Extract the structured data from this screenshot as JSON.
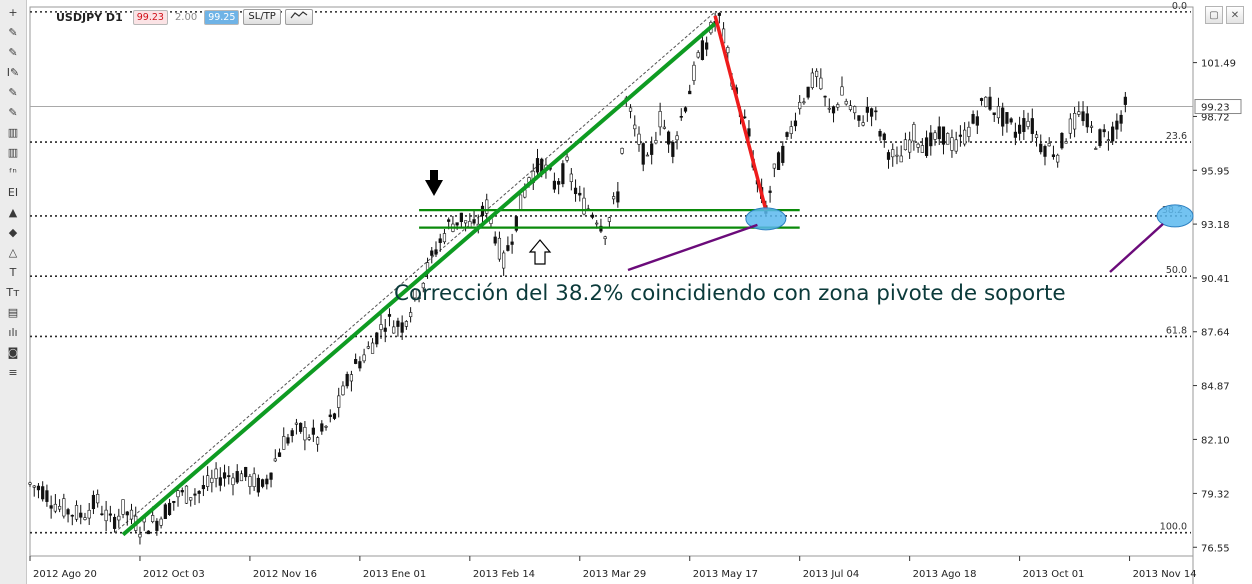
{
  "chart_data": {
    "type": "candlestick",
    "symbol_label": "USDJPY D1",
    "bid": "99.23",
    "spread": "2.00",
    "ask": "99.25",
    "sltp_label": "SL/TP",
    "current_price": "99.23",
    "ylim": [
      76.1,
      104.3
    ],
    "y_ticks": [
      "101.49",
      "98.72",
      "95.95",
      "93.18",
      "90.41",
      "87.64",
      "84.87",
      "82.10",
      "79.32",
      "76.55"
    ],
    "x_ticks": [
      "2012 Ago 20",
      "2012 Oct 03",
      "2012 Nov 16",
      "2013 Ene 01",
      "2013 Feb 14",
      "2013 Mar 29",
      "2013 May 17",
      "2013 Jul 04",
      "2013 Ago 18",
      "2013 Oct 01",
      "2013 Nov 14"
    ],
    "fibonacci_levels": [
      {
        "label": "0.0",
        "price": 104.1
      },
      {
        "label": "23.6",
        "price": 97.4
      },
      {
        "label": "38.2",
        "price": 93.6
      },
      {
        "label": "50.0",
        "price": 90.5
      },
      {
        "label": "61.8",
        "price": 87.4
      },
      {
        "label": "100.0",
        "price": 77.3
      }
    ],
    "price_path": [
      {
        "x": 0,
        "y": 79.8
      },
      {
        "x": 3,
        "y": 79.5
      },
      {
        "x": 7,
        "y": 78.6
      },
      {
        "x": 12,
        "y": 78.2
      },
      {
        "x": 16,
        "y": 78.9
      },
      {
        "x": 19,
        "y": 77.8
      },
      {
        "x": 22,
        "y": 78.5
      },
      {
        "x": 26,
        "y": 77.6
      },
      {
        "x": 30,
        "y": 77.9
      },
      {
        "x": 35,
        "y": 79.2
      },
      {
        "x": 40,
        "y": 79.4
      },
      {
        "x": 45,
        "y": 80.2
      },
      {
        "x": 50,
        "y": 80.3
      },
      {
        "x": 55,
        "y": 79.6
      },
      {
        "x": 60,
        "y": 82.0
      },
      {
        "x": 64,
        "y": 82.6
      },
      {
        "x": 68,
        "y": 82.1
      },
      {
        "x": 72,
        "y": 83.3
      },
      {
        "x": 76,
        "y": 85.6
      },
      {
        "x": 80,
        "y": 86.7
      },
      {
        "x": 84,
        "y": 88.2
      },
      {
        "x": 88,
        "y": 88.0
      },
      {
        "x": 92,
        "y": 89.8
      },
      {
        "x": 96,
        "y": 91.9
      },
      {
        "x": 99,
        "y": 93.1
      },
      {
        "x": 102,
        "y": 93.5
      },
      {
        "x": 105,
        "y": 92.9
      },
      {
        "x": 108,
        "y": 94.1
      },
      {
        "x": 112,
        "y": 91.2
      },
      {
        "x": 115,
        "y": 93.4
      },
      {
        "x": 118,
        "y": 95.6
      },
      {
        "x": 121,
        "y": 96.3
      },
      {
        "x": 124,
        "y": 95.2
      },
      {
        "x": 127,
        "y": 96.1
      },
      {
        "x": 130,
        "y": 94.4
      },
      {
        "x": 134,
        "y": 93.6
      },
      {
        "x": 136,
        "y": 92.9
      },
      {
        "x": 139,
        "y": 94.7
      },
      {
        "x": 141,
        "y": 99.5
      },
      {
        "x": 143,
        "y": 98.0
      },
      {
        "x": 146,
        "y": 96.2
      },
      {
        "x": 149,
        "y": 98.6
      },
      {
        "x": 152,
        "y": 97.2
      },
      {
        "x": 155,
        "y": 99.4
      },
      {
        "x": 158,
        "y": 101.6
      },
      {
        "x": 162,
        "y": 103.6
      },
      {
        "x": 163,
        "y": 103.7
      },
      {
        "x": 165,
        "y": 101.8
      },
      {
        "x": 167,
        "y": 99.8
      },
      {
        "x": 170,
        "y": 97.7
      },
      {
        "x": 172,
        "y": 95.2
      },
      {
        "x": 174,
        "y": 94.0
      },
      {
        "x": 176,
        "y": 95.8
      },
      {
        "x": 179,
        "y": 97.4
      },
      {
        "x": 182,
        "y": 99.4
      },
      {
        "x": 186,
        "y": 100.8
      },
      {
        "x": 189,
        "y": 98.9
      },
      {
        "x": 192,
        "y": 99.8
      },
      {
        "x": 196,
        "y": 98.4
      },
      {
        "x": 199,
        "y": 99.2
      },
      {
        "x": 202,
        "y": 97.4
      },
      {
        "x": 205,
        "y": 96.3
      },
      {
        "x": 209,
        "y": 97.8
      },
      {
        "x": 212,
        "y": 97.2
      },
      {
        "x": 216,
        "y": 97.8
      },
      {
        "x": 219,
        "y": 97.1
      },
      {
        "x": 223,
        "y": 98.4
      },
      {
        "x": 226,
        "y": 99.6
      },
      {
        "x": 229,
        "y": 98.9
      },
      {
        "x": 233,
        "y": 97.9
      },
      {
        "x": 236,
        "y": 98.6
      },
      {
        "x": 239,
        "y": 97.3
      },
      {
        "x": 243,
        "y": 96.9
      },
      {
        "x": 246,
        "y": 98.2
      },
      {
        "x": 249,
        "y": 98.8
      },
      {
        "x": 252,
        "y": 97.5
      },
      {
        "x": 256,
        "y": 98.0
      },
      {
        "x": 259,
        "y": 99.2
      }
    ],
    "annotations": {
      "text": "Corrección del 38.2% coincidiendo con zona pivote de soporte",
      "trend_up": {
        "from": {
          "x": 22,
          "y": 77.2
        },
        "to": {
          "x": 162,
          "y": 103.5
        }
      },
      "retrace": {
        "from": {
          "x": 162,
          "y": 103.9
        },
        "to": {
          "x": 174,
          "y": 93.9
        }
      },
      "pivot_zone": {
        "upper": 93.9,
        "lower": 93.0,
        "x_from": 92,
        "x_to": 182
      }
    }
  },
  "toolbar": {
    "icons": [
      "crosshair-icon",
      "pencil-icon",
      "pencil-icon",
      "pencil-icon",
      "pencil-icon",
      "pencil-icon",
      "bars-icon",
      "bars-icon",
      "fn-icon",
      "el-icon",
      "up-arrow-icon",
      "down-arrow-icon",
      "shapes-icon",
      "text-icon",
      "text-small-icon",
      "layers-icon",
      "candles-icon",
      "camera-icon",
      "list-icon"
    ],
    "glyphs": [
      "+",
      "✎",
      "✎",
      "I✎",
      "✎",
      "✎",
      "▥",
      "▥",
      "ᶠⁿ",
      "EI",
      "▲",
      "◆",
      "△",
      "T",
      "Tт",
      "▤",
      "ılı",
      "◙",
      "≡"
    ]
  },
  "window_controls": {
    "minimize": "‒",
    "maximize": "▢",
    "close": "✕"
  }
}
